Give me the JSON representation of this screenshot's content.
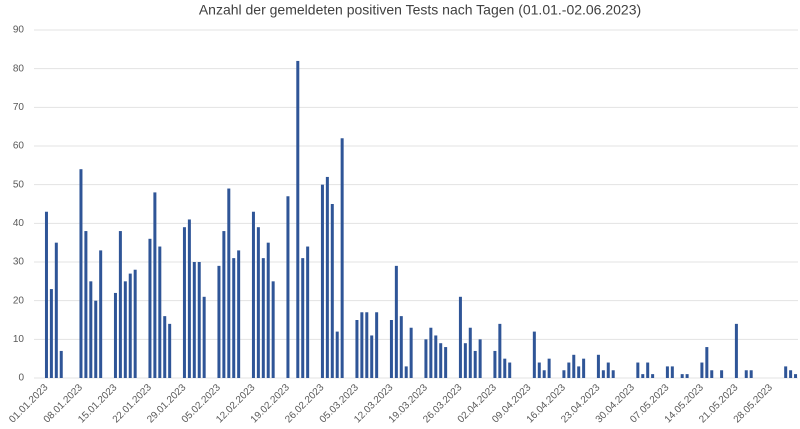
{
  "chart_data": {
    "type": "bar",
    "title": "Anzahl der gemeldeten positiven Tests nach Tagen (01.01.-02.06.2023)",
    "categories": [
      "01.01.2023",
      null,
      null,
      null,
      null,
      null,
      null,
      "08.01.2023",
      null,
      null,
      null,
      null,
      null,
      null,
      "15.01.2023",
      null,
      null,
      null,
      null,
      null,
      null,
      "22.01.2023",
      null,
      null,
      null,
      null,
      null,
      null,
      "29.01.2023",
      null,
      null,
      null,
      null,
      null,
      null,
      "05.02.2023",
      null,
      null,
      null,
      null,
      null,
      null,
      "12.02.2023",
      null,
      null,
      null,
      null,
      null,
      null,
      "19.02.2023",
      null,
      null,
      null,
      null,
      null,
      null,
      "26.02.2023",
      null,
      null,
      null,
      null,
      null,
      null,
      "05.03.2023",
      null,
      null,
      null,
      null,
      null,
      null,
      "12.03.2023",
      null,
      null,
      null,
      null,
      null,
      null,
      "19.03.2023",
      null,
      null,
      null,
      null,
      null,
      null,
      "26.03.2023",
      null,
      null,
      null,
      null,
      null,
      null,
      "02.04.2023",
      null,
      null,
      null,
      null,
      null,
      null,
      "09.04.2023",
      null,
      null,
      null,
      null,
      null,
      null,
      "16.04.2023",
      null,
      null,
      null,
      null,
      null,
      null,
      "23.04.2023",
      null,
      null,
      null,
      null,
      null,
      null,
      "30.04.2023",
      null,
      null,
      null,
      null,
      null,
      null,
      "07.05.2023",
      null,
      null,
      null,
      null,
      null,
      null,
      "14.05.2023",
      null,
      null,
      null,
      null,
      null,
      null,
      "21.05.2023",
      null,
      null,
      null,
      null,
      null,
      null,
      "28.05.2023",
      null,
      null,
      null,
      null,
      null
    ],
    "values": [
      43,
      23,
      35,
      7,
      0,
      0,
      0,
      54,
      38,
      25,
      20,
      33,
      0,
      0,
      22,
      38,
      25,
      27,
      28,
      0,
      0,
      36,
      48,
      34,
      16,
      14,
      0,
      0,
      39,
      41,
      30,
      30,
      21,
      0,
      0,
      29,
      38,
      49,
      31,
      33,
      0,
      0,
      43,
      39,
      31,
      35,
      25,
      0,
      0,
      47,
      0,
      82,
      31,
      34,
      0,
      0,
      50,
      52,
      45,
      12,
      62,
      0,
      0,
      15,
      17,
      17,
      11,
      17,
      0,
      0,
      15,
      29,
      16,
      3,
      13,
      0,
      0,
      10,
      13,
      11,
      9,
      8,
      0,
      0,
      21,
      9,
      13,
      7,
      10,
      0,
      0,
      7,
      14,
      5,
      4,
      0,
      0,
      0,
      0,
      12,
      4,
      2,
      5,
      0,
      0,
      2,
      4,
      6,
      3,
      5,
      0,
      0,
      6,
      2,
      4,
      2,
      0,
      0,
      0,
      0,
      4,
      1,
      4,
      1,
      0,
      0,
      3,
      3,
      0,
      1,
      1,
      0,
      0,
      4,
      8,
      2,
      0,
      2,
      0,
      0,
      14,
      0,
      2,
      2,
      0,
      0,
      0,
      0,
      0,
      0,
      3,
      2,
      1
    ],
    "color": "#2f5597",
    "ylim": [
      0,
      90
    ],
    "yticks": [
      0,
      10,
      20,
      30,
      40,
      50,
      60,
      70,
      80,
      90
    ],
    "grid": true
  }
}
